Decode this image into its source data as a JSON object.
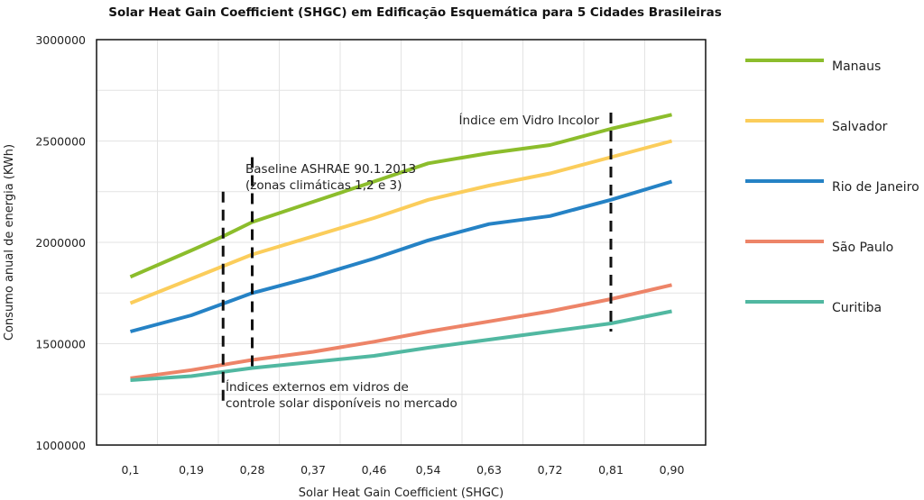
{
  "chart_data": {
    "type": "line",
    "title": "Solar Heat Gain Coefficient (SHGC) em Edificação Esquemática para 5 Cidades Brasileiras",
    "xlabel": "Solar Heat Gain Coefficient (SHGC)",
    "ylabel": "Consumo anual de energia (KWh)",
    "categories": [
      "0,1",
      "0,19",
      "0,28",
      "0,37",
      "0,46",
      "0,54",
      "0,63",
      "0,72",
      "0,81",
      "0,90"
    ],
    "x": [
      0.1,
      0.19,
      0.28,
      0.37,
      0.46,
      0.54,
      0.63,
      0.72,
      0.81,
      0.9
    ],
    "xlim": [
      0.05,
      0.95
    ],
    "ylim": [
      1000000,
      3000000
    ],
    "yticks": [
      1000000,
      1500000,
      2000000,
      2500000,
      3000000
    ],
    "ytick_labels": [
      "1000000",
      "1500000",
      "2000000",
      "2500000",
      "3000000"
    ],
    "grid": true,
    "legend_position": "right",
    "series": [
      {
        "name": "Manaus",
        "color": "#8cbd2c",
        "points": [
          [
            0.1,
            1830000
          ],
          [
            0.19,
            1960000
          ],
          [
            0.237,
            2030000
          ],
          [
            0.28,
            2100000
          ],
          [
            0.37,
            2200000
          ],
          [
            0.46,
            2300000
          ],
          [
            0.54,
            2390000
          ],
          [
            0.63,
            2440000
          ],
          [
            0.72,
            2480000
          ],
          [
            0.81,
            2560000
          ],
          [
            0.9,
            2630000
          ]
        ]
      },
      {
        "name": "Salvador",
        "color": "#fbcd5b",
        "points": [
          [
            0.1,
            1700000
          ],
          [
            0.19,
            1820000
          ],
          [
            0.28,
            1940000
          ],
          [
            0.37,
            2030000
          ],
          [
            0.46,
            2120000
          ],
          [
            0.54,
            2210000
          ],
          [
            0.63,
            2280000
          ],
          [
            0.72,
            2340000
          ],
          [
            0.81,
            2420000
          ],
          [
            0.9,
            2500000
          ]
        ]
      },
      {
        "name": "Rio de Janeiro",
        "color": "#2582c5",
        "points": [
          [
            0.1,
            1560000
          ],
          [
            0.19,
            1640000
          ],
          [
            0.28,
            1750000
          ],
          [
            0.37,
            1830000
          ],
          [
            0.46,
            1920000
          ],
          [
            0.54,
            2010000
          ],
          [
            0.63,
            2090000
          ],
          [
            0.72,
            2130000
          ],
          [
            0.81,
            2210000
          ],
          [
            0.9,
            2300000
          ]
        ]
      },
      {
        "name": "São Paulo",
        "color": "#ed8468",
        "points": [
          [
            0.1,
            1330000
          ],
          [
            0.19,
            1370000
          ],
          [
            0.28,
            1420000
          ],
          [
            0.37,
            1460000
          ],
          [
            0.46,
            1510000
          ],
          [
            0.54,
            1560000
          ],
          [
            0.63,
            1610000
          ],
          [
            0.72,
            1660000
          ],
          [
            0.81,
            1720000
          ],
          [
            0.9,
            1790000
          ]
        ]
      },
      {
        "name": "Curitiba",
        "color": "#51b8a1",
        "points": [
          [
            0.1,
            1320000
          ],
          [
            0.19,
            1340000
          ],
          [
            0.28,
            1380000
          ],
          [
            0.37,
            1410000
          ],
          [
            0.46,
            1440000
          ],
          [
            0.54,
            1480000
          ],
          [
            0.63,
            1520000
          ],
          [
            0.72,
            1560000
          ],
          [
            0.81,
            1600000
          ],
          [
            0.9,
            1660000
          ]
        ]
      }
    ],
    "annotations": [
      {
        "text": "Baseline ASHRAE 90.1.2013\n(zonas climáticas 1,2 e 3)",
        "x": 0.28,
        "y_range": [
          1370000,
          2420000
        ]
      },
      {
        "text": "Índice em Vidro Incolor",
        "x": 0.81,
        "y_range": [
          1560000,
          2640000
        ]
      },
      {
        "text": "Índices externos em vidros de\ncontrole solar disponíveis no mercado",
        "x": 0.237,
        "y_range": [
          1200000,
          2250000
        ]
      }
    ]
  }
}
